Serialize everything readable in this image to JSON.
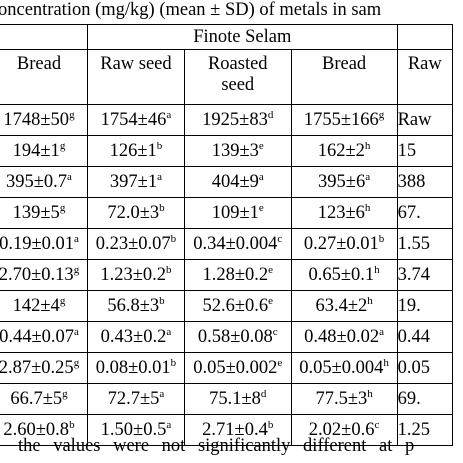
{
  "caption": "oncentration (mg/kg) (mean ± SD) of metals in sam",
  "group_header": "Finote Selam",
  "columns": [
    "Bread",
    "Raw seed",
    "Roasted seed",
    "Bread",
    "Raw"
  ],
  "rows": [
    [
      [
        "1748±50",
        "g"
      ],
      [
        "1754±46",
        "a"
      ],
      [
        "1925±83",
        "d"
      ],
      [
        "1755±166",
        "g"
      ],
      [
        "Raw",
        ""
      ]
    ],
    [
      [
        "194±1",
        "g"
      ],
      [
        "126±1",
        "b"
      ],
      [
        "139±3",
        "e"
      ],
      [
        "162±2",
        "h"
      ],
      [
        "15",
        ""
      ]
    ],
    [
      [
        "395±0.7",
        "a"
      ],
      [
        "397±1",
        "a"
      ],
      [
        "404±9",
        "a"
      ],
      [
        "395±6",
        "a"
      ],
      [
        "388",
        ""
      ]
    ],
    [
      [
        "139±5",
        "g"
      ],
      [
        "72.0±3",
        "b"
      ],
      [
        "109±1",
        "e"
      ],
      [
        "123±6",
        "h"
      ],
      [
        "67.",
        ""
      ]
    ],
    [
      [
        "0.19±0.01",
        "a"
      ],
      [
        "0.23±0.07",
        "b"
      ],
      [
        "0.34±0.004",
        "c"
      ],
      [
        "0.27±0.01",
        "b"
      ],
      [
        "1.55",
        ""
      ]
    ],
    [
      [
        "2.70±0.13",
        "g"
      ],
      [
        "1.23±0.2",
        "b"
      ],
      [
        "1.28±0.2",
        "e"
      ],
      [
        "0.65±0.1",
        "h"
      ],
      [
        "3.74",
        ""
      ]
    ],
    [
      [
        "142±4",
        "g"
      ],
      [
        "56.8±3",
        "b"
      ],
      [
        "52.6±0.6",
        "e"
      ],
      [
        "63.4±2",
        "h"
      ],
      [
        "19.",
        ""
      ]
    ],
    [
      [
        "0.44±0.07",
        "a"
      ],
      [
        "0.43±0.2",
        "a"
      ],
      [
        "0.58±0.08",
        "c"
      ],
      [
        "0.48±0.02",
        "a"
      ],
      [
        "0.44",
        ""
      ]
    ],
    [
      [
        "2.87±0.25",
        "g"
      ],
      [
        "0.08±0.01",
        "b"
      ],
      [
        "0.05±0.002",
        "e"
      ],
      [
        "0.05±0.004",
        "h"
      ],
      [
        "0.05",
        ""
      ]
    ],
    [
      [
        "66.7±5",
        "g"
      ],
      [
        "72.7±5",
        "a"
      ],
      [
        "75.1±8",
        "d"
      ],
      [
        "77.5±3",
        "h"
      ],
      [
        "69.",
        ""
      ]
    ],
    [
      [
        "2.60±0.8",
        "b"
      ],
      [
        "1.50±0.5",
        "a"
      ],
      [
        "2.71±0.4",
        "b"
      ],
      [
        "2.02±0.6",
        "c"
      ],
      [
        "1.25",
        ""
      ]
    ]
  ],
  "footnote": "the values were not significantly different at p"
}
